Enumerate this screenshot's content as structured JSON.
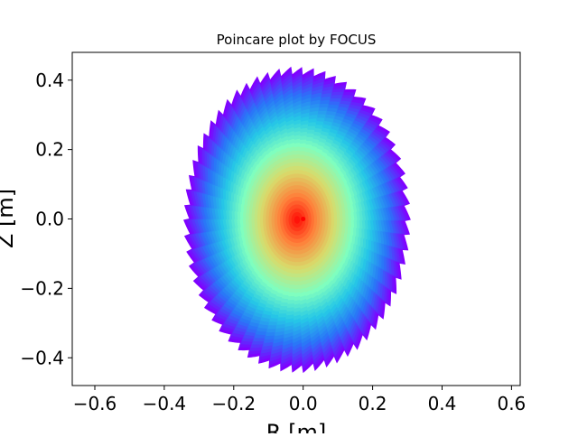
{
  "chart_data": {
    "type": "scatter",
    "title": "Poincare plot by FOCUS",
    "xlabel": "R [m]",
    "ylabel": "Z [m]",
    "xlim": [
      -0.665,
      0.625
    ],
    "ylim": [
      -0.48,
      0.48
    ],
    "xticks": [
      -0.6,
      -0.4,
      -0.2,
      0.0,
      0.2,
      0.4,
      0.6
    ],
    "xtick_labels": [
      "−0.6",
      "−0.4",
      "−0.2",
      "0.0",
      "0.2",
      "0.4",
      "0.6"
    ],
    "yticks": [
      -0.4,
      -0.2,
      0.0,
      0.2,
      0.4
    ],
    "ytick_labels": [
      "−0.4",
      "−0.2",
      "0.0",
      "0.2",
      "0.4"
    ],
    "grid": false,
    "legend": "none",
    "colormap": "rainbow",
    "colormap_stops": [
      "#ff0000",
      "#ff7f3a",
      "#d8dc6b",
      "#7ffebf",
      "#26c9e6",
      "#2a73f8",
      "#8000ff"
    ],
    "magnetic_axis": {
      "r": 0.0,
      "z": 0.0
    },
    "boundary": {
      "r_min": -0.345,
      "r_max": 0.31,
      "z_min": -0.445,
      "z_max": 0.44,
      "r_center": 0.0,
      "z_center": 0.0,
      "ripple_count": 62,
      "ripple_amplitude": 0.055
    },
    "surface_count": 40
  }
}
